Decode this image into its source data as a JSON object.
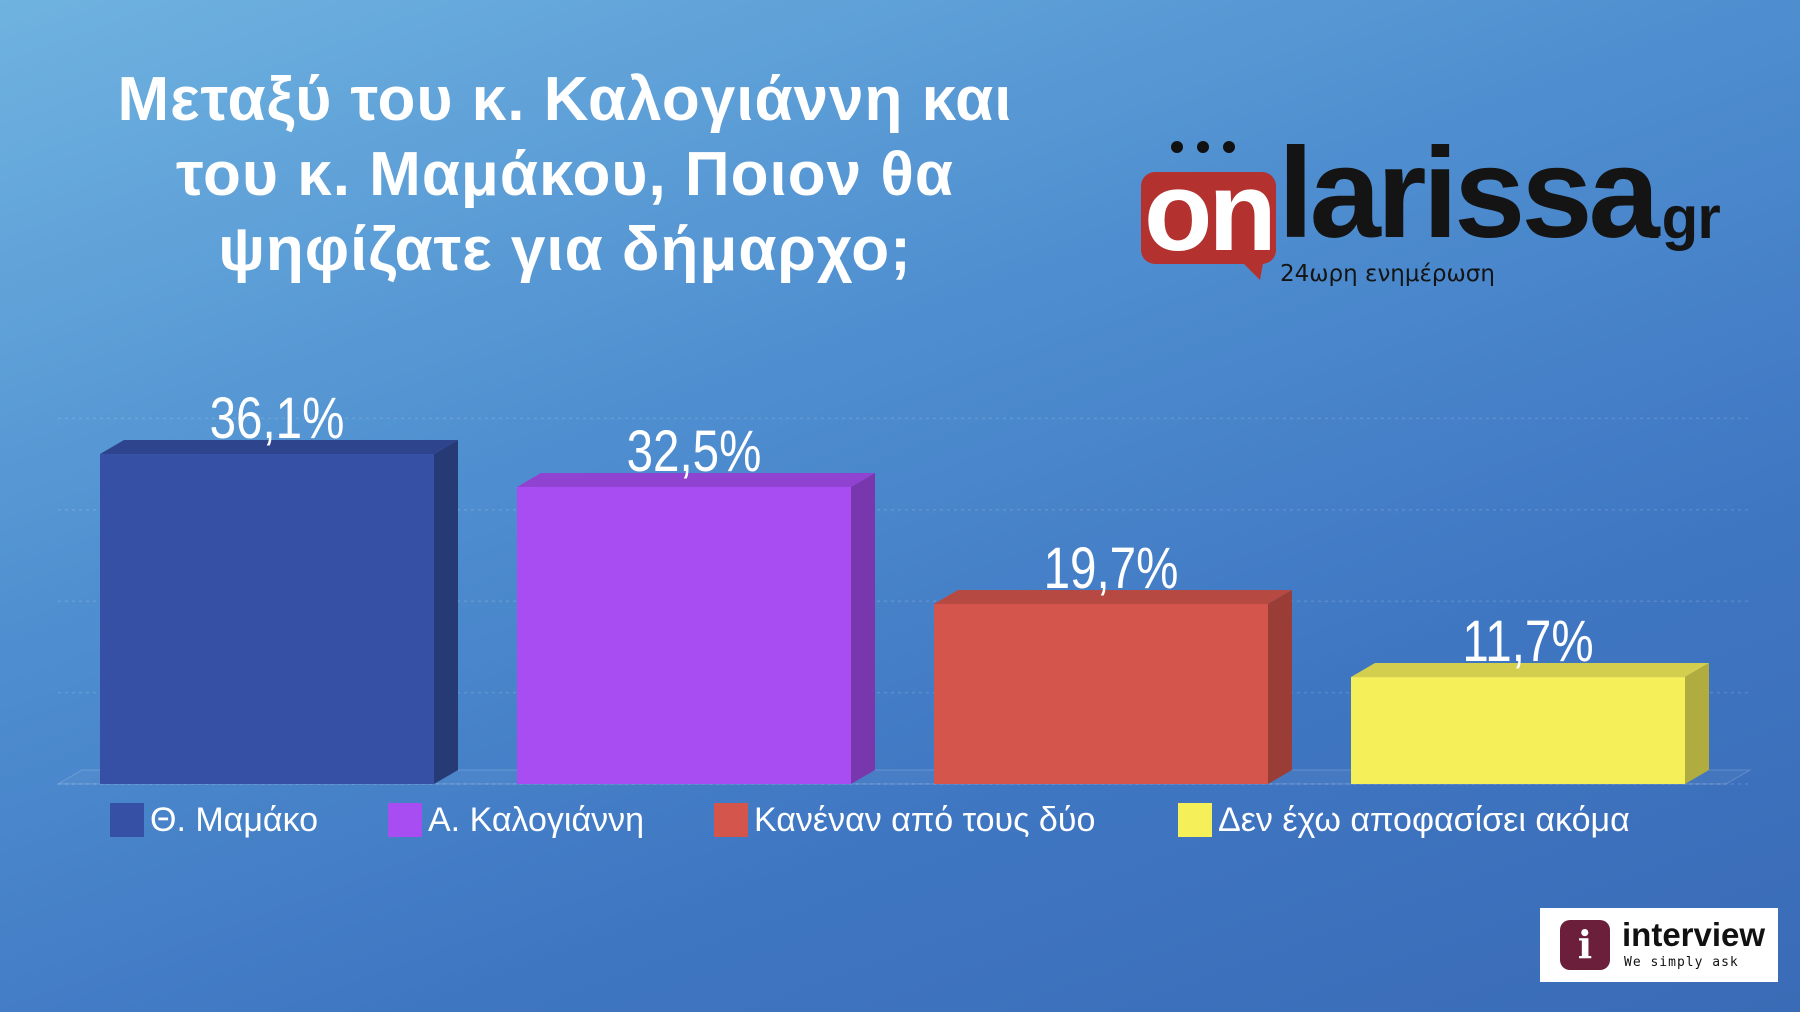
{
  "title_lines": [
    "Μεταξύ του κ. Καλογιάννη και",
    "του κ. Μαμάκου, Ποιον θα",
    "ψηφίζατε για δήμαρχο;"
  ],
  "logo": {
    "on": "on",
    "larissa": "larissa",
    "gr": ".gr",
    "tagline": "24ωρη ενημέρωση"
  },
  "badge": {
    "icon_name": "info-icon",
    "name": "interview",
    "slogan": "We simply ask"
  },
  "chart_data": {
    "type": "bar",
    "categories": [
      "Θ. Μαμάκο",
      "Α. Καλογιάννη",
      "Κανέναν από τους δύο",
      "Δεν έχω αποφασίσει ακόμα"
    ],
    "values": [
      36.1,
      32.5,
      19.7,
      11.7
    ],
    "value_labels": [
      "36,1%",
      "32,5%",
      "19,7%",
      "11,7%"
    ],
    "colors": [
      "#3550a4",
      "#a84df2",
      "#d4554b",
      "#f5ef59"
    ],
    "title": "Μεταξύ του κ. Καλογιάννη και του κ. Μαμάκου, Ποιον θα ψηφίζατε για δήμαρχο;",
    "xlabel": "",
    "ylabel": "",
    "ylim": [
      0,
      40
    ],
    "grid": true,
    "legend": "bottom"
  }
}
